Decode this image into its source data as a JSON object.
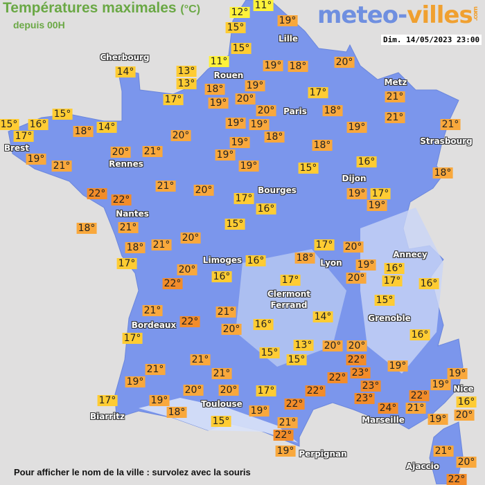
{
  "header": {
    "title": "Températures maximales",
    "unit": "(°C)",
    "subtitle": "depuis 00H",
    "logo_part1": "meteo-",
    "logo_part2": "villes",
    "logo_suffix": ".com",
    "date": "Dim. 14/05/2023 23:00"
  },
  "footer": "Pour afficher le nom de la ville : survolez avec la souris",
  "colors": {
    "land": "#7b96ec",
    "sea": "#e0dfdf",
    "temp_11_12": "#fff23a",
    "temp_13_17": "#ffcc33",
    "temp_18_21": "#f9a83c",
    "temp_22_plus": "#f28c2a",
    "title": "#6aa845"
  },
  "cities": [
    "Cherbourg",
    "Rouen",
    "Lille",
    "Metz",
    "Paris",
    "Strasbourg",
    "Brest",
    "Rennes",
    "Dijon",
    "Bourges",
    "Nantes",
    "Annecy",
    "Limoges",
    "Lyon",
    "Clermont Ferrand",
    "Grenoble",
    "Bordeaux",
    "Nice",
    "Toulouse",
    "Biarritz",
    "Marseille",
    "Perpignan",
    "Ajaccio"
  ],
  "temperatures": [
    "12°",
    "11°",
    "15°",
    "19°",
    "15°",
    "11°",
    "19°",
    "18°",
    "20°",
    "14°",
    "13°",
    "13°",
    "18°",
    "19°",
    "19°",
    "20°",
    "20°",
    "17°",
    "18°",
    "17°",
    "21°",
    "21°",
    "15°",
    "15°",
    "16°",
    "17°",
    "18°",
    "14°",
    "19°",
    "19°",
    "18°",
    "19°",
    "21°",
    "19°",
    "21°",
    "20°",
    "21°",
    "20°",
    "19°",
    "19°",
    "19°",
    "18°",
    "16°",
    "15°",
    "18°",
    "22°",
    "22°",
    "21°",
    "20°",
    "17°",
    "16°",
    "19°",
    "17°",
    "19°",
    "18°",
    "21°",
    "15°",
    "20°",
    "18°",
    "17°",
    "21°",
    "20°",
    "22°",
    "16°",
    "16°",
    "18°",
    "17°",
    "20°",
    "19°",
    "20°",
    "16°",
    "17°",
    "16°",
    "17°",
    "21°",
    "22°",
    "21°",
    "20°",
    "16°",
    "14°",
    "15°",
    "16°",
    "17°",
    "15°",
    "13°",
    "15°",
    "20°",
    "20°",
    "22°",
    "19°",
    "21°",
    "21°",
    "21°",
    "19°",
    "20°",
    "20°",
    "17°",
    "22°",
    "23°",
    "23°",
    "22°",
    "23°",
    "24°",
    "22°",
    "19°",
    "19°",
    "22°",
    "16°",
    "17°",
    "19°",
    "18°",
    "19°",
    "21°",
    "19°",
    "20°",
    "15°",
    "21°",
    "22°",
    "19°",
    "21°",
    "20°",
    "22°"
  ]
}
